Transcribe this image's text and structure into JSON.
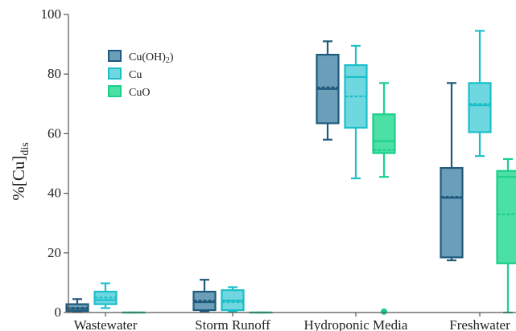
{
  "chart_data": {
    "type": "box",
    "ylabel": "%[Cu]",
    "ylabel_subscript": "dis",
    "ylim": [
      0,
      100
    ],
    "yticks": [
      0,
      20,
      40,
      60,
      80,
      100
    ],
    "grid": false,
    "legend_position": "top-left",
    "categories": [
      "Wastewater",
      "Storm Runoff",
      "Hydroponic Media",
      "Freshwater"
    ],
    "series": [
      {
        "name": "Cu(OH)",
        "name_subscript": "2",
        "fill": "#6b9eb8",
        "stroke": "#1f5a7c",
        "boxes": [
          {
            "whisker_low": 0.3,
            "q1": 0.5,
            "median": 1.2,
            "mean": 1.6,
            "q3": 2.8,
            "whisker_high": 4.5
          },
          {
            "whisker_low": 0.3,
            "q1": 0.8,
            "median": 3.5,
            "mean": 4.0,
            "q3": 7.0,
            "whisker_high": 11.0
          },
          {
            "whisker_low": 58,
            "q1": 63.5,
            "median": 75.0,
            "mean": 75.5,
            "q3": 86.5,
            "whisker_high": 91.0
          },
          {
            "whisker_low": 17.5,
            "q1": 18.5,
            "median": 38.5,
            "mean": 38.8,
            "q3": 48.5,
            "whisker_high": 77.0
          }
        ]
      },
      {
        "name": "Cu",
        "fill": "#6fd7df",
        "stroke": "#1bbfc9",
        "boxes": [
          {
            "whisker_low": 1.5,
            "q1": 2.8,
            "median": 4.2,
            "mean": 5.0,
            "q3": 7.0,
            "whisker_high": 9.8
          },
          {
            "whisker_low": 0.3,
            "q1": 0.8,
            "median": 4.0,
            "mean": 3.5,
            "q3": 7.5,
            "whisker_high": 8.5
          },
          {
            "whisker_low": 45,
            "q1": 62.0,
            "median": 79.0,
            "mean": 72.5,
            "q3": 83.0,
            "whisker_high": 89.5
          },
          {
            "whisker_low": 52.5,
            "q1": 60.5,
            "median": 69.5,
            "mean": 70.0,
            "q3": 77.0,
            "whisker_high": 94.5
          }
        ]
      },
      {
        "name": "CuO",
        "fill": "#4ce0a5",
        "stroke": "#1ad08a",
        "boxes": [
          {
            "whisker_low": 0,
            "q1": 0,
            "median": 0,
            "mean": 0,
            "q3": 0,
            "whisker_high": 0
          },
          {
            "whisker_low": 0,
            "q1": 0,
            "median": 0,
            "mean": 0,
            "q3": 0,
            "whisker_high": 0
          },
          {
            "whisker_low": 45.5,
            "q1": 53.5,
            "median": 57.5,
            "mean": 54.5,
            "q3": 66.5,
            "whisker_high": 77.0,
            "outliers": [
              0.3
            ]
          },
          {
            "whisker_low": 0,
            "q1": 16.5,
            "median": 45.5,
            "mean": 33.0,
            "q3": 47.5,
            "whisker_high": 51.5
          }
        ]
      }
    ]
  }
}
